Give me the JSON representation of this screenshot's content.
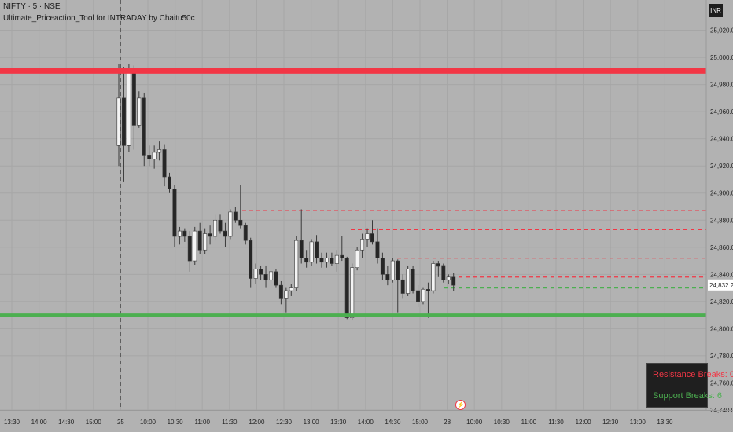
{
  "header": {
    "symbol": "NIFTY · 5 · NSE",
    "indicator": "Ultimate_Priceaction_Tool for INTRADAY by Chaitu50c"
  },
  "currency": "INR",
  "colors": {
    "background": "#b2b2b2",
    "bull": "#f4f4f4",
    "bear": "#262626",
    "resistance": "#f23645",
    "support": "#4caf50",
    "grid": "#a6a6a6"
  },
  "chart_data": {
    "type": "candlestick",
    "symbol": "NIFTY",
    "timeframe": "5",
    "exchange": "NSE",
    "ylim": [
      24740,
      25040
    ],
    "y_ticks": [
      "25,020.00",
      "25,000.00",
      "24,980.00",
      "24,960.00",
      "24,940.00",
      "24,920.00",
      "24,900.00",
      "24,880.00",
      "24,860.00",
      "24,840.00",
      "24,820.00",
      "24,800.00",
      "24,780.00",
      "24,760.00",
      "24,740.00"
    ],
    "x_ticks": [
      "13:30",
      "14:00",
      "14:30",
      "15:00",
      "25",
      "10:00",
      "10:30",
      "11:00",
      "11:30",
      "12:00",
      "12:30",
      "13:00",
      "13:30",
      "14:00",
      "14:30",
      "15:00",
      "28",
      "10:00",
      "10:30",
      "11:00",
      "11:30",
      "12:00",
      "12:30",
      "13:00",
      "13:30"
    ],
    "session_break_label": "25",
    "candles": [
      {
        "o": 24935,
        "h": 24995,
        "l": 24920,
        "c": 24970
      },
      {
        "o": 24970,
        "h": 24993,
        "l": 24908,
        "c": 24935
      },
      {
        "o": 24935,
        "h": 24995,
        "l": 24930,
        "c": 24992
      },
      {
        "o": 24992,
        "h": 24994,
        "l": 24932,
        "c": 24950
      },
      {
        "o": 24950,
        "h": 24975,
        "l": 24948,
        "c": 24970
      },
      {
        "o": 24970,
        "h": 24974,
        "l": 24920,
        "c": 24928
      },
      {
        "o": 24928,
        "h": 24935,
        "l": 24920,
        "c": 24925
      },
      {
        "o": 24925,
        "h": 24935,
        "l": 24918,
        "c": 24930
      },
      {
        "o": 24930,
        "h": 24938,
        "l": 24924,
        "c": 24932
      },
      {
        "o": 24932,
        "h": 24936,
        "l": 24905,
        "c": 24912
      },
      {
        "o": 24912,
        "h": 24915,
        "l": 24900,
        "c": 24903
      },
      {
        "o": 24903,
        "h": 24906,
        "l": 24860,
        "c": 24868
      },
      {
        "o": 24868,
        "h": 24875,
        "l": 24862,
        "c": 24872
      },
      {
        "o": 24872,
        "h": 24874,
        "l": 24864,
        "c": 24868
      },
      {
        "o": 24868,
        "h": 24872,
        "l": 24842,
        "c": 24850
      },
      {
        "o": 24850,
        "h": 24875,
        "l": 24847,
        "c": 24872
      },
      {
        "o": 24872,
        "h": 24878,
        "l": 24855,
        "c": 24858
      },
      {
        "o": 24858,
        "h": 24874,
        "l": 24855,
        "c": 24870
      },
      {
        "o": 24870,
        "h": 24876,
        "l": 24862,
        "c": 24868
      },
      {
        "o": 24868,
        "h": 24884,
        "l": 24865,
        "c": 24880
      },
      {
        "o": 24880,
        "h": 24884,
        "l": 24870,
        "c": 24872
      },
      {
        "o": 24872,
        "h": 24878,
        "l": 24860,
        "c": 24868
      },
      {
        "o": 24868,
        "h": 24888,
        "l": 24866,
        "c": 24886
      },
      {
        "o": 24886,
        "h": 24890,
        "l": 24878,
        "c": 24880
      },
      {
        "o": 24880,
        "h": 24906,
        "l": 24874,
        "c": 24876
      },
      {
        "o": 24876,
        "h": 24878,
        "l": 24862,
        "c": 24865
      },
      {
        "o": 24865,
        "h": 24867,
        "l": 24830,
        "c": 24837
      },
      {
        "o": 24837,
        "h": 24848,
        "l": 24833,
        "c": 24844
      },
      {
        "o": 24844,
        "h": 24846,
        "l": 24836,
        "c": 24840
      },
      {
        "o": 24840,
        "h": 24846,
        "l": 24830,
        "c": 24836
      },
      {
        "o": 24836,
        "h": 24845,
        "l": 24833,
        "c": 24842
      },
      {
        "o": 24842,
        "h": 24844,
        "l": 24830,
        "c": 24832
      },
      {
        "o": 24832,
        "h": 24835,
        "l": 24818,
        "c": 24822
      },
      {
        "o": 24822,
        "h": 24830,
        "l": 24812,
        "c": 24828
      },
      {
        "o": 24828,
        "h": 24833,
        "l": 24824,
        "c": 24830
      },
      {
        "o": 24830,
        "h": 24868,
        "l": 24828,
        "c": 24865
      },
      {
        "o": 24865,
        "h": 24888,
        "l": 24848,
        "c": 24852
      },
      {
        "o": 24852,
        "h": 24858,
        "l": 24845,
        "c": 24849
      },
      {
        "o": 24849,
        "h": 24866,
        "l": 24846,
        "c": 24864
      },
      {
        "o": 24864,
        "h": 24869,
        "l": 24848,
        "c": 24852
      },
      {
        "o": 24852,
        "h": 24856,
        "l": 24845,
        "c": 24849
      },
      {
        "o": 24849,
        "h": 24856,
        "l": 24845,
        "c": 24852
      },
      {
        "o": 24852,
        "h": 24856,
        "l": 24846,
        "c": 24848
      },
      {
        "o": 24848,
        "h": 24858,
        "l": 24842,
        "c": 24854
      },
      {
        "o": 24854,
        "h": 24868,
        "l": 24850,
        "c": 24852
      },
      {
        "o": 24852,
        "h": 24853,
        "l": 24807,
        "c": 24808
      },
      {
        "o": 24808,
        "h": 24848,
        "l": 24806,
        "c": 24845
      },
      {
        "o": 24845,
        "h": 24860,
        "l": 24843,
        "c": 24858
      },
      {
        "o": 24858,
        "h": 24870,
        "l": 24852,
        "c": 24866
      },
      {
        "o": 24866,
        "h": 24874,
        "l": 24860,
        "c": 24870
      },
      {
        "o": 24870,
        "h": 24880,
        "l": 24862,
        "c": 24864
      },
      {
        "o": 24864,
        "h": 24874,
        "l": 24848,
        "c": 24852
      },
      {
        "o": 24852,
        "h": 24856,
        "l": 24836,
        "c": 24840
      },
      {
        "o": 24840,
        "h": 24846,
        "l": 24832,
        "c": 24836
      },
      {
        "o": 24836,
        "h": 24852,
        "l": 24834,
        "c": 24850
      },
      {
        "o": 24850,
        "h": 24851,
        "l": 24812,
        "c": 24836
      },
      {
        "o": 24836,
        "h": 24840,
        "l": 24822,
        "c": 24826
      },
      {
        "o": 24826,
        "h": 24846,
        "l": 24824,
        "c": 24844
      },
      {
        "o": 24844,
        "h": 24846,
        "l": 24826,
        "c": 24828
      },
      {
        "o": 24828,
        "h": 24832,
        "l": 24816,
        "c": 24820
      },
      {
        "o": 24820,
        "h": 24830,
        "l": 24818,
        "c": 24829
      },
      {
        "o": 24829,
        "h": 24834,
        "l": 24808,
        "c": 24828
      },
      {
        "o": 24828,
        "h": 24850,
        "l": 24826,
        "c": 24848
      },
      {
        "o": 24848,
        "h": 24850,
        "l": 24838,
        "c": 24846
      },
      {
        "o": 24846,
        "h": 24848,
        "l": 24834,
        "c": 24836
      },
      {
        "o": 24836,
        "h": 24840,
        "l": 24833,
        "c": 24838
      },
      {
        "o": 24838,
        "h": 24841,
        "l": 24828,
        "c": 24832
      }
    ],
    "resistance_zone": 24990,
    "support_zone": 24810,
    "resistance_levels": [
      24887,
      24873,
      24852,
      24838
    ],
    "support_levels": [
      24830
    ],
    "last_price": "24,832.20"
  },
  "stats": {
    "resistance_label": "Resistance Breaks: 0",
    "support_label": "Support Breaks: 6"
  },
  "bolt_icon": "⚡"
}
